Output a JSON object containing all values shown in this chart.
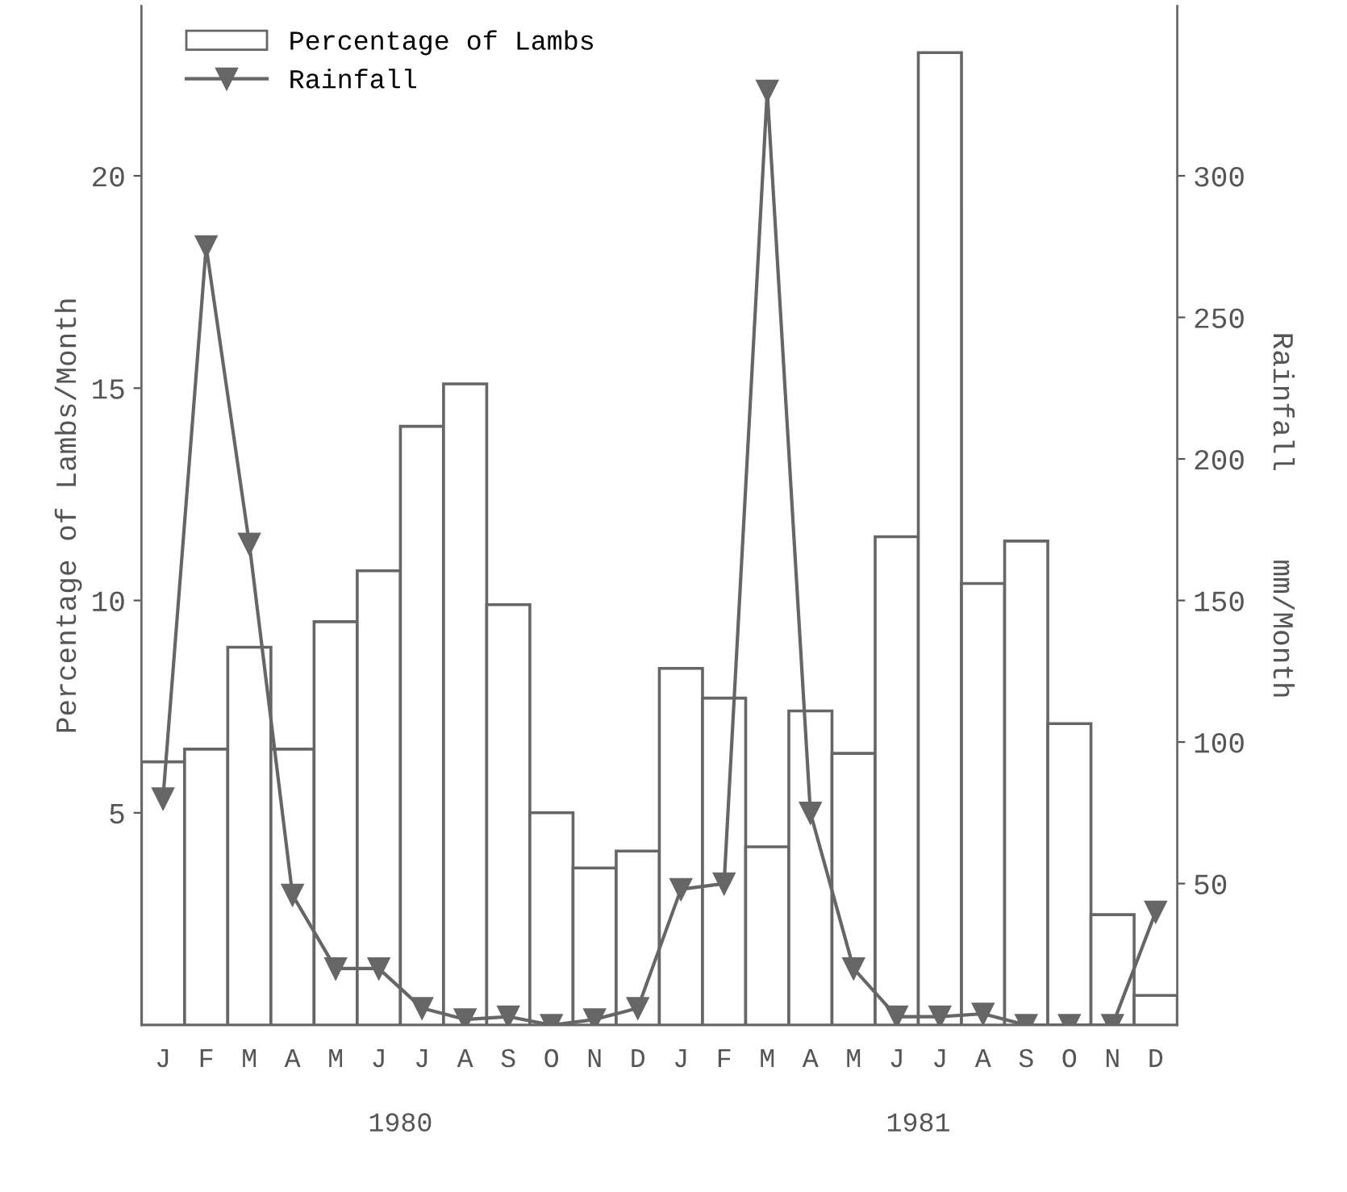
{
  "chart_data": {
    "type": "bar",
    "categories": [
      "J",
      "F",
      "M",
      "A",
      "M",
      "J",
      "J",
      "A",
      "S",
      "O",
      "N",
      "D",
      "J",
      "F",
      "M",
      "A",
      "M",
      "J",
      "J",
      "A",
      "S",
      "O",
      "N",
      "D"
    ],
    "ylabel": "Percentage of Lambs/Month",
    "y2label": "Rainfall     mm/Month",
    "ylim": [
      0,
      24
    ],
    "yticks": [
      5,
      10,
      15,
      20
    ],
    "y2lim": [
      0,
      360
    ],
    "y2ticks": [
      50,
      100,
      150,
      200,
      250,
      300
    ],
    "legend": "top left",
    "grid": false,
    "annotations": [
      "1980",
      "1981"
    ],
    "series": [
      {
        "name": "Percentage of Lambs",
        "color": "#ffffff",
        "values": [
          6.2,
          6.5,
          8.9,
          6.5,
          9.5,
          10.7,
          14.1,
          15.1,
          9.9,
          5.0,
          3.7,
          4.1,
          8.4,
          7.7,
          4.2,
          7.4,
          6.4,
          11.5,
          22.9,
          10.4,
          11.4,
          7.1,
          2.6,
          0.7
        ]
      },
      {
        "name": "Rainfall",
        "type": "line",
        "axis": "y2",
        "color": "#666666",
        "marker": "triangle",
        "line_style": "solid",
        "values": [
          80,
          275,
          170,
          46,
          20,
          20,
          6,
          2,
          3,
          0,
          2,
          6,
          48,
          50,
          330,
          75,
          20,
          3,
          3,
          4,
          0,
          0,
          0,
          40
        ]
      }
    ]
  }
}
